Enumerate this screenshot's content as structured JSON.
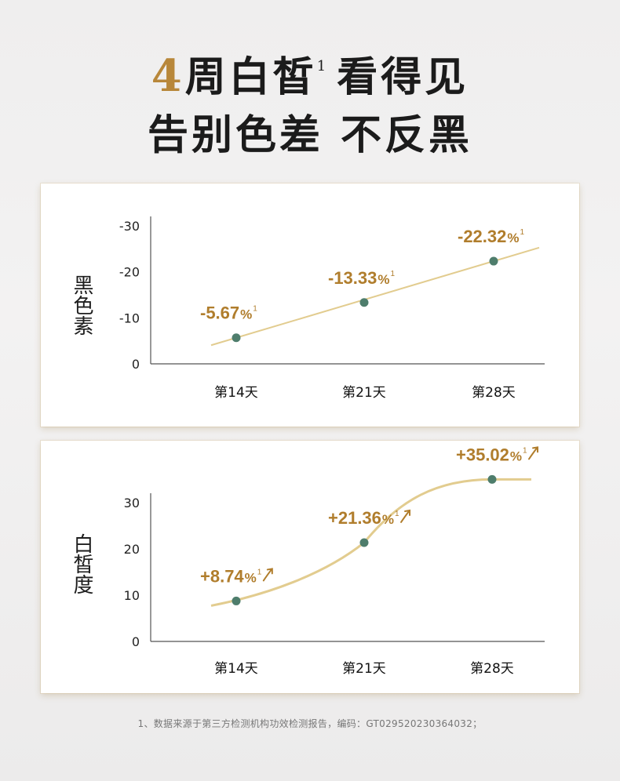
{
  "headline": {
    "line1_num": "4",
    "line1_a": "周白皙",
    "line1_sup": "1",
    "line1_b": "看得见",
    "line2": "告别色差 不反黑"
  },
  "footnote": "1、数据来源于第三方检测机构功效检测报告，编码：GT029520230364032；",
  "colors": {
    "accent": "#b07d2c",
    "line": "#e2cc8f",
    "point": "#4e7d6c"
  },
  "chart_data": [
    {
      "type": "line",
      "ylabel": "黑色素",
      "categories": [
        "第14天",
        "第21天",
        "第28天"
      ],
      "values": [
        -5.67,
        -13.33,
        -22.32
      ],
      "data_labels": [
        "-5.67%",
        "-13.33%",
        "-22.32%"
      ],
      "label_sup": "1",
      "yticks": [
        "-30",
        "-20",
        "-10",
        "0"
      ],
      "ylim": [
        0,
        -30
      ],
      "ytick_values": [
        -30,
        -20,
        -10,
        0
      ],
      "trend_arrow": false
    },
    {
      "type": "line",
      "ylabel": "白皙度",
      "categories": [
        "第14天",
        "第21天",
        "第28天"
      ],
      "values": [
        8.74,
        21.36,
        35.02
      ],
      "data_labels": [
        "+8.74%",
        "+21.36%",
        "+35.02%"
      ],
      "label_sup": "1",
      "yticks": [
        "30",
        "20",
        "10",
        "0"
      ],
      "ylim": [
        0,
        30
      ],
      "ytick_values": [
        30,
        20,
        10,
        0
      ],
      "trend_arrow": true
    }
  ]
}
